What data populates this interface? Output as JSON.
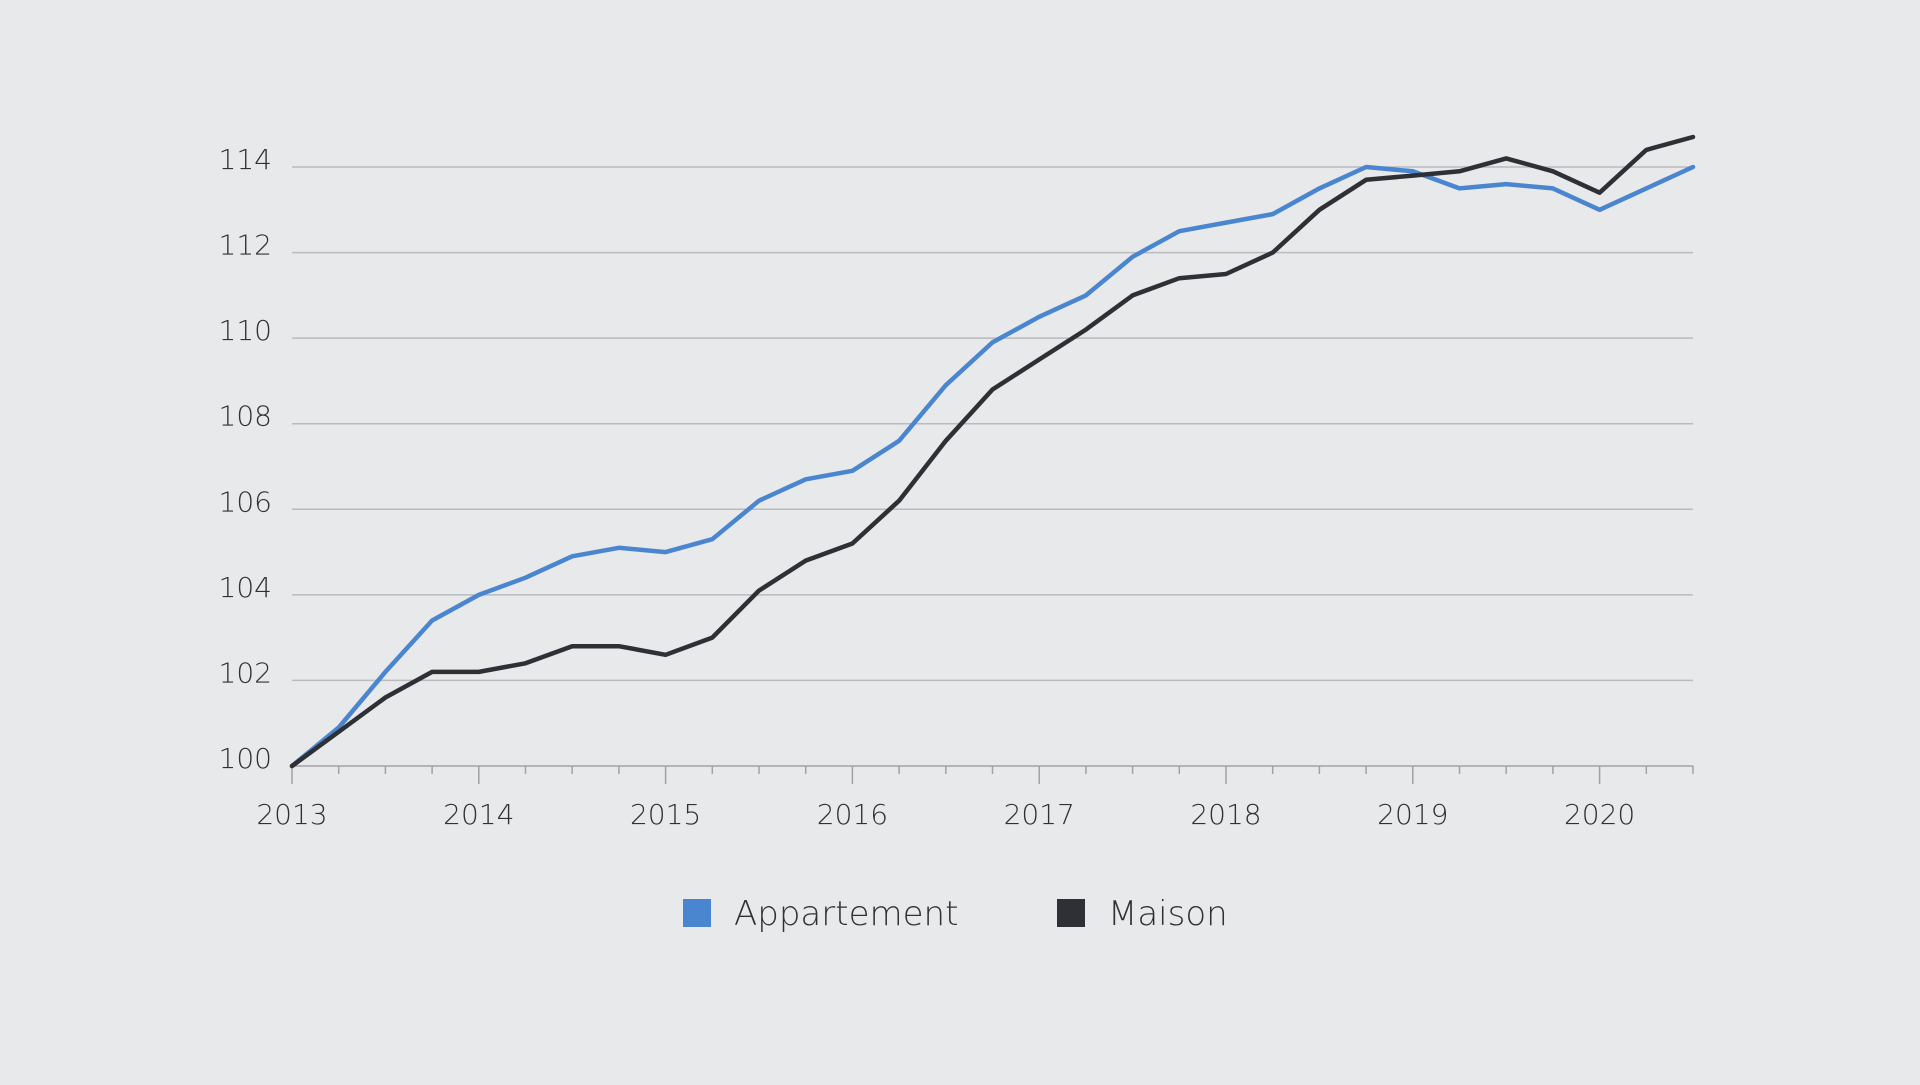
{
  "chart_data": {
    "type": "line",
    "title": "",
    "xlabel": "",
    "ylabel": "",
    "x_start_year": 2013,
    "x_step_years": 0.25,
    "xlim": [
      2013,
      2020.5
    ],
    "ylim": [
      100,
      114
    ],
    "yticks": [
      100,
      102,
      104,
      106,
      108,
      110,
      112,
      114
    ],
    "xtick_labels": [
      "2013",
      "2014",
      "2015",
      "2016",
      "2017",
      "2018",
      "2019",
      "2020"
    ],
    "grid": true,
    "legend_position": "bottom-center",
    "series": [
      {
        "name": "Appartement",
        "color": "#4a86cf",
        "values": [
          100.0,
          100.9,
          102.2,
          103.4,
          104.0,
          104.4,
          104.9,
          105.1,
          105.0,
          105.3,
          106.2,
          106.7,
          106.9,
          107.6,
          108.9,
          109.9,
          110.5,
          111.0,
          111.9,
          112.5,
          112.7,
          112.9,
          113.5,
          114.0,
          113.9,
          113.5,
          113.6,
          113.5,
          113.0,
          113.5,
          114.0
        ]
      },
      {
        "name": "Maison",
        "color": "#2e3035",
        "values": [
          100.0,
          100.8,
          101.6,
          102.2,
          102.2,
          102.4,
          102.8,
          102.8,
          102.6,
          103.0,
          104.1,
          104.8,
          105.2,
          106.2,
          107.6,
          108.8,
          109.5,
          110.2,
          111.0,
          111.4,
          111.5,
          112.0,
          113.0,
          113.7,
          113.8,
          113.9,
          114.2,
          113.9,
          113.4,
          114.4,
          114.7
        ]
      }
    ]
  }
}
